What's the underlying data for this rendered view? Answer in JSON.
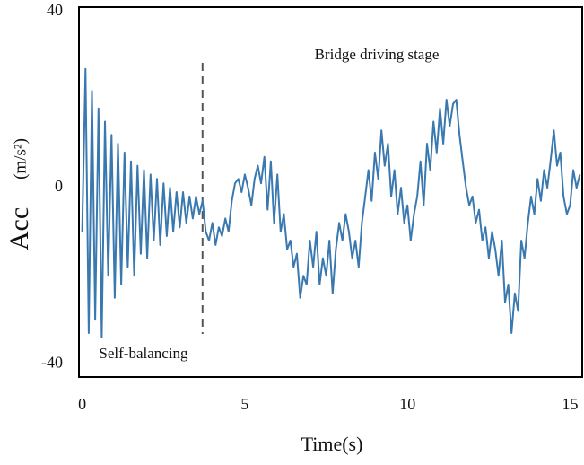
{
  "chart_data": {
    "type": "line",
    "xlabel": "Time(s)",
    "ylabel": "Acc",
    "ylabel_unit": "(m/s²)",
    "annotations": [
      "Bridge driving stage",
      "Self-balancing"
    ],
    "divider_x": 3.7,
    "xlim": [
      -0.1,
      15.4
    ],
    "xticks": [
      0,
      5,
      10,
      15
    ],
    "ylim": [
      -43,
      41
    ],
    "yticks": [
      -40,
      0,
      40
    ],
    "grid": false,
    "series": [
      {
        "color": "#3a78b0",
        "x": [
          0,
          0.1,
          0.2,
          0.3,
          0.4,
          0.5,
          0.6,
          0.7,
          0.8,
          0.9,
          1,
          1.1,
          1.2,
          1.3,
          1.4,
          1.5,
          1.6,
          1.7,
          1.8,
          1.9,
          2,
          2.1,
          2.2,
          2.3,
          2.4,
          2.5,
          2.6,
          2.7,
          2.8,
          2.9,
          3,
          3.1,
          3.2,
          3.3,
          3.4,
          3.5,
          3.6,
          3.7,
          3.8,
          3.9,
          4,
          4.1,
          4.2,
          4.3,
          4.4,
          4.5,
          4.6,
          4.7,
          4.8,
          4.9,
          5,
          5.1,
          5.2,
          5.3,
          5.4,
          5.5,
          5.6,
          5.7,
          5.8,
          5.9,
          6,
          6.1,
          6.2,
          6.3,
          6.4,
          6.5,
          6.6,
          6.7,
          6.8,
          6.9,
          7,
          7.1,
          7.2,
          7.3,
          7.4,
          7.5,
          7.6,
          7.7,
          7.8,
          7.9,
          8,
          8.1,
          8.2,
          8.3,
          8.4,
          8.5,
          8.6,
          8.7,
          8.8,
          8.9,
          9,
          9.1,
          9.2,
          9.3,
          9.4,
          9.5,
          9.6,
          9.7,
          9.8,
          9.9,
          10,
          10.1,
          10.2,
          10.3,
          10.4,
          10.5,
          10.6,
          10.7,
          10.8,
          10.9,
          11,
          11.1,
          11.2,
          11.3,
          11.4,
          11.5,
          11.6,
          11.7,
          11.8,
          11.9,
          12,
          12.1,
          12.2,
          12.3,
          12.4,
          12.5,
          12.6,
          12.7,
          12.8,
          12.9,
          13,
          13.1,
          13.2,
          13.3,
          13.4,
          13.5,
          13.6,
          13.7,
          13.8,
          13.9,
          14,
          14.1,
          14.2,
          14.3,
          14.4,
          14.5,
          14.6,
          14.7,
          14.8,
          14.9,
          15,
          15.1,
          15.2,
          15.3
        ],
        "values": [
          -10,
          27,
          -33,
          22,
          -30,
          18,
          -34,
          15,
          -20,
          12,
          -25,
          10,
          -22,
          8,
          -18,
          6,
          -20,
          5,
          -15,
          4,
          -16,
          3,
          -12,
          2,
          -13,
          1,
          -11,
          0,
          -10,
          -1,
          -9,
          -1,
          -8,
          -2,
          -7,
          -2,
          -6,
          -3,
          -10,
          -12,
          -8,
          -13,
          -9,
          -11,
          -7,
          -10,
          -3,
          1,
          2,
          -1,
          3,
          0,
          -4,
          2,
          5,
          1,
          7,
          -5,
          6,
          -8,
          3,
          -10,
          -6,
          -14,
          -12,
          -18,
          -15,
          -25,
          -20,
          -22,
          -12,
          -18,
          -10,
          -22,
          -16,
          -20,
          -12,
          -24,
          -14,
          -8,
          -12,
          -6,
          -10,
          -16,
          -12,
          -18,
          -8,
          -2,
          4,
          -3,
          8,
          2,
          13,
          5,
          10,
          -2,
          4,
          -6,
          0,
          -8,
          -4,
          -12,
          -6,
          -2,
          6,
          -4,
          10,
          4,
          15,
          8,
          18,
          10,
          20,
          14,
          19,
          20,
          12,
          6,
          0,
          -4,
          -2,
          -8,
          -5,
          -12,
          -9,
          -16,
          -10,
          -14,
          -20,
          -12,
          -26,
          -22,
          -33,
          -24,
          -28,
          -12,
          -16,
          -8,
          -2,
          -6,
          2,
          -3,
          4,
          0,
          6,
          13,
          5,
          8,
          -2,
          -6,
          -4,
          4,
          0,
          3
        ]
      }
    ]
  }
}
